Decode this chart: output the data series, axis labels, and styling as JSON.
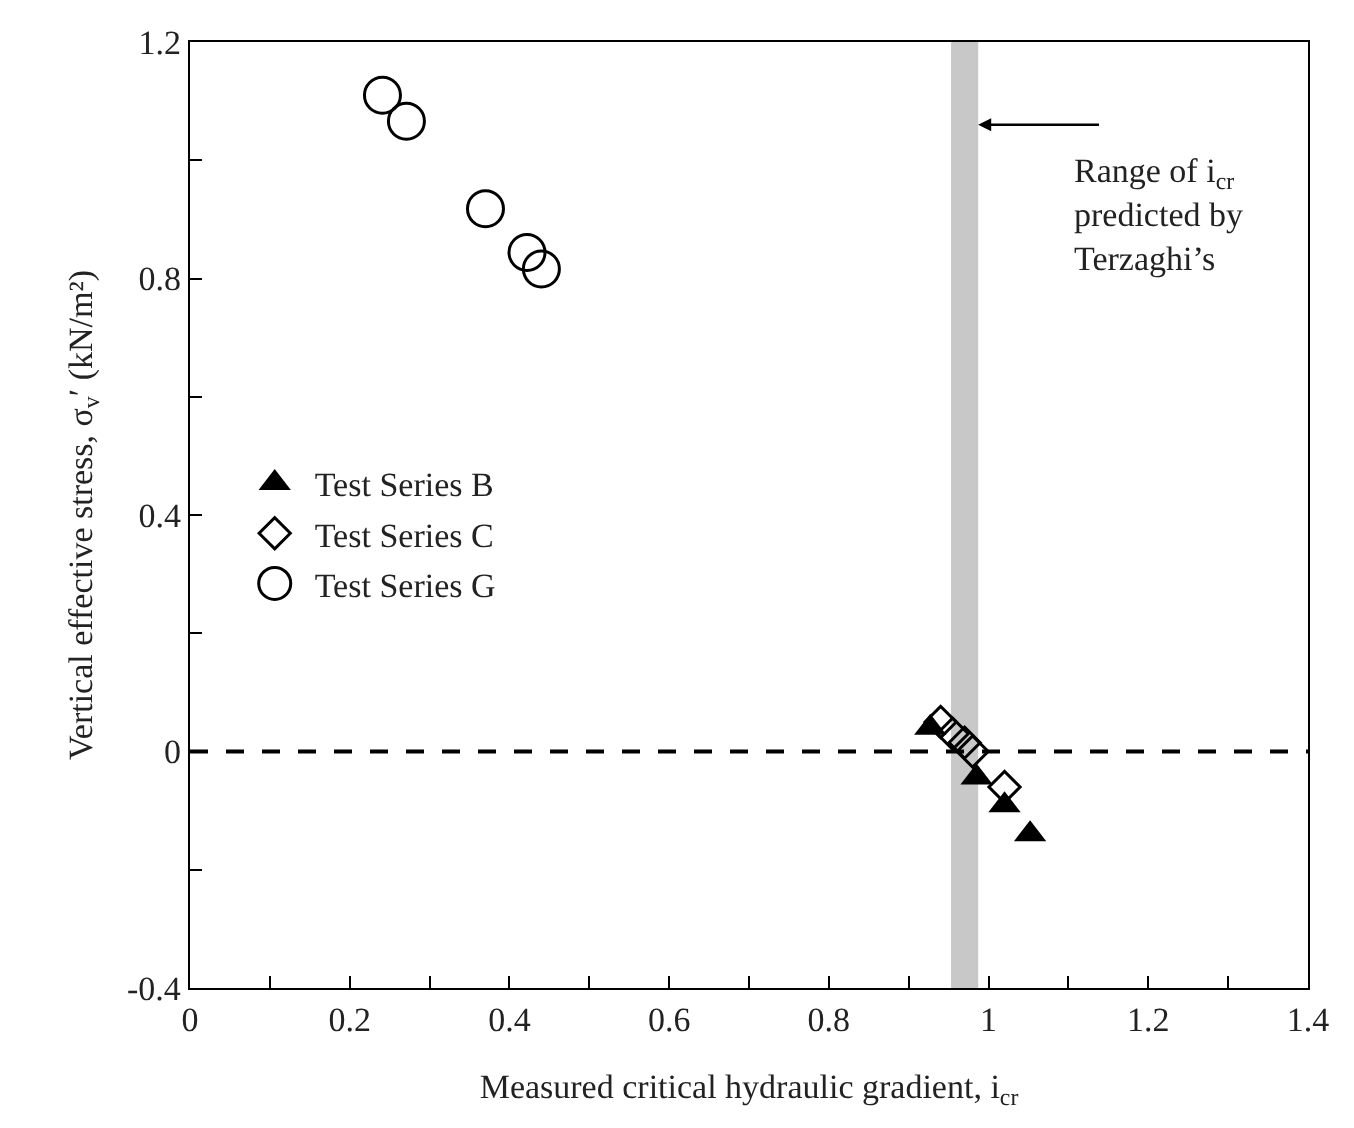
{
  "chart_data": {
    "type": "scatter",
    "xlabel": "Measured critical hydraulic gradient, i$_{cr}$",
    "ylabel": "Vertical effective stress, σ$_{v}$′ (kN/m²)",
    "series": [
      {
        "name": "Test Series B",
        "color": "#000000",
        "marker": "triangle",
        "x": [
          0.927,
          0.985,
          1.02,
          1.052
        ],
        "values": [
          0.04,
          -0.044,
          -0.091,
          -0.14
        ]
      },
      {
        "name": "Test Series C",
        "color": "#000000",
        "marker": "diamond",
        "x": [
          0.94,
          0.955,
          0.97,
          0.98,
          1.02
        ],
        "values": [
          0.05,
          0.03,
          0.015,
          0.0,
          -0.06
        ]
      },
      {
        "name": "Test Series G",
        "color": "#000000",
        "marker": "circle",
        "x": [
          0.241,
          0.271,
          0.37,
          0.422,
          0.44
        ],
        "values": [
          1.11,
          1.066,
          0.918,
          0.844,
          0.816
        ]
      }
    ],
    "xlim": [
      0,
      1.4
    ],
    "xticks": [
      0,
      {
        "value": 0.1,
        "label": null
      },
      0.2,
      {
        "value": 0.3,
        "label": null
      },
      0.4,
      {
        "value": 0.5,
        "label": null
      },
      0.6,
      {
        "value": 0.7,
        "label": null
      },
      0.8,
      {
        "value": 0.9,
        "label": null
      },
      1,
      {
        "value": 1.1,
        "label": null
      },
      1.2,
      {
        "value": 1.3,
        "label": null
      },
      1.4
    ],
    "ylim": [
      -0.4,
      1.2
    ],
    "yticks": [
      -0.4,
      {
        "value": -0.2,
        "label": null
      },
      0,
      {
        "value": 0.2,
        "label": null
      },
      0.4,
      {
        "value": 0.6,
        "label": null
      },
      0.8,
      {
        "value": 1.0,
        "label": null
      },
      1.2
    ],
    "ref_lines": [
      {
        "axis": "y",
        "value": 0,
        "color": "#000000",
        "line_style": "dashed"
      }
    ],
    "bands": [
      {
        "axis": "x",
        "from": 0.953,
        "to": 0.987,
        "color": "#c8c8c8"
      }
    ],
    "annotations": [
      {
        "text": "Range of i$_{cr}$\npredicted by\nTerzaghi’s",
        "x": 0.987,
        "y": 1.06
      }
    ],
    "grid": false,
    "legend": "left"
  }
}
